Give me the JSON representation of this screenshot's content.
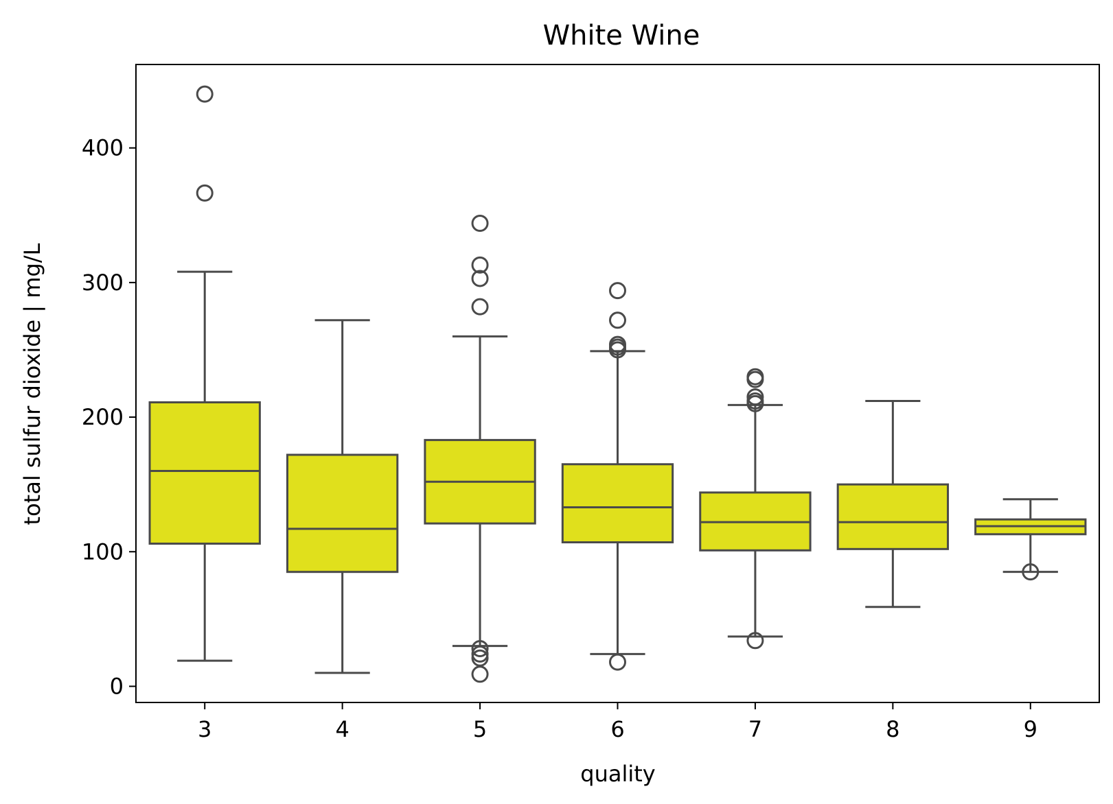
{
  "chart_data": {
    "type": "box",
    "title": "White Wine",
    "xlabel": "quality",
    "ylabel": "total sulfur dioxide | mg/L",
    "ylim": [
      -12,
      462
    ],
    "yticks": [
      0,
      100,
      200,
      300,
      400
    ],
    "grid": false,
    "colors": {
      "box_fill": "#e0e01c",
      "line": "#4a4a4a",
      "frame": "#000000"
    },
    "categories": [
      "3",
      "4",
      "5",
      "6",
      "7",
      "8",
      "9"
    ],
    "boxes": [
      {
        "category": "3",
        "whisker_low": 19,
        "q1": 106,
        "median": 160,
        "q3": 211,
        "whisker_high": 308,
        "outliers": [
          366.5,
          440
        ]
      },
      {
        "category": "4",
        "whisker_low": 10,
        "q1": 85,
        "median": 117,
        "q3": 172,
        "whisker_high": 272,
        "outliers": []
      },
      {
        "category": "5",
        "whisker_low": 30,
        "q1": 121,
        "median": 152,
        "q3": 183,
        "whisker_high": 260,
        "outliers": [
          9,
          21,
          24,
          28,
          282,
          303,
          313,
          344
        ]
      },
      {
        "category": "6",
        "whisker_low": 24,
        "q1": 107,
        "median": 133,
        "q3": 165,
        "whisker_high": 249,
        "outliers": [
          18,
          250,
          252,
          254,
          272,
          294
        ]
      },
      {
        "category": "7",
        "whisker_low": 37,
        "q1": 101,
        "median": 122,
        "q3": 144,
        "whisker_high": 209,
        "outliers": [
          34,
          210,
          212,
          215,
          228,
          230
        ]
      },
      {
        "category": "8",
        "whisker_low": 59,
        "q1": 102,
        "median": 122,
        "q3": 150,
        "whisker_high": 212,
        "outliers": []
      },
      {
        "category": "9",
        "whisker_low": 85,
        "q1": 113,
        "median": 119,
        "q3": 124,
        "whisker_high": 139,
        "outliers": [
          85
        ]
      }
    ]
  }
}
